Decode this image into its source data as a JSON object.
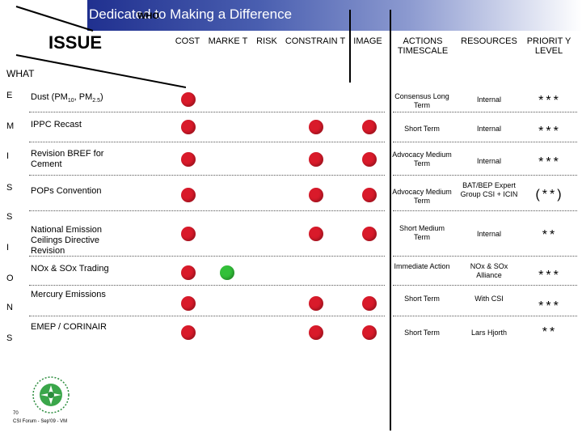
{
  "header": {
    "banner_title": "Dedicated to Making a Difference",
    "who_label": "WHO",
    "issue_label": "ISSUE",
    "what_label": "WHAT"
  },
  "columns": [
    "COST",
    "MARKE T",
    "RISK",
    "CONSTRAIN T",
    "IMAGE",
    "ACTIONS TIMESCALE",
    "RESOURCES",
    "PRIORIT Y LEVEL"
  ],
  "side_letters": [
    "E",
    "M",
    "I",
    "S",
    "S",
    "I",
    "O",
    "N",
    "S"
  ],
  "rows": [
    {
      "issue": "Dust (PM10, PM2.5)",
      "dots": [
        "red",
        null,
        null,
        null,
        null
      ],
      "action": "Consensus Long Term",
      "resources": "Internal",
      "priority": "***"
    },
    {
      "issue": "IPPC Recast",
      "dots": [
        "red",
        null,
        null,
        "red",
        "red"
      ],
      "action": "Short Term",
      "resources": "Internal",
      "priority": "***"
    },
    {
      "issue": "Revision BREF for Cement",
      "dots": [
        "red",
        null,
        null,
        "red",
        "red"
      ],
      "action": "Advocacy Medium Term",
      "resources": "Internal",
      "priority": "***"
    },
    {
      "issue": "POPs Convention",
      "dots": [
        "red",
        null,
        null,
        "red",
        "red"
      ],
      "action": "Advocacy Medium Term",
      "resources": "BAT/BEP Expert Group CSI + ICIN",
      "priority": "(**)"
    },
    {
      "issue": "National Emission Ceilings Directive Revision",
      "dots": [
        "red",
        null,
        null,
        "red",
        "red"
      ],
      "action": "Short Medium Term",
      "resources": "Internal",
      "priority": "**"
    },
    {
      "issue": "NOx & SOx Trading",
      "dots": [
        "red",
        "green",
        null,
        null,
        null
      ],
      "action": "Immediate Action",
      "resources": "NOx & SOx Alliance",
      "priority": "***"
    },
    {
      "issue": "Mercury Emissions",
      "dots": [
        "red",
        null,
        null,
        "red",
        "red"
      ],
      "action": "Short Term",
      "resources": "With CSI",
      "priority": "***"
    },
    {
      "issue": "EMEP / CORINAIR",
      "dots": [
        "red",
        null,
        null,
        "red",
        "red"
      ],
      "action": "Short Term",
      "resources": "Lars Hjorth",
      "priority": "**"
    }
  ],
  "footer": {
    "page_number": "70",
    "footer_text": "CSI Forum - Sep'09 - VM"
  }
}
